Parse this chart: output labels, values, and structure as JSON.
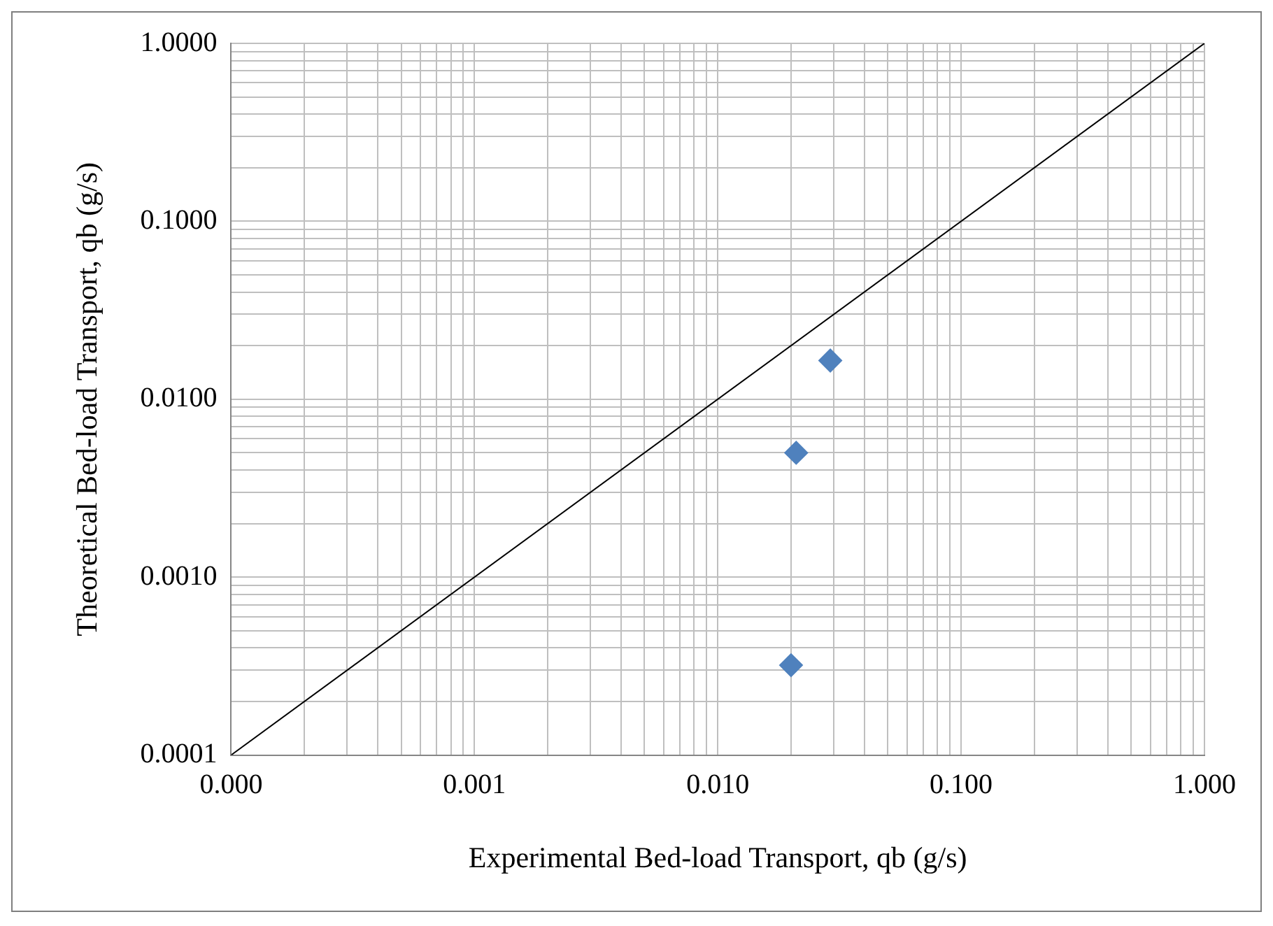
{
  "chart_data": {
    "type": "scatter",
    "xlabel": "Experimental Bed-load Transport, qb (g/s)",
    "ylabel": "Theoretical Bed-load Transport, qb (g/s)",
    "log": "xy",
    "grid": true,
    "legend": false,
    "marker": "diamond",
    "xlim": [
      0.0001,
      1
    ],
    "ylim": [
      0.0001,
      1
    ],
    "xticks": [
      {
        "value": 0.0001,
        "label": "0.000"
      },
      {
        "value": 0.0002,
        "label": null
      },
      {
        "value": 0.0003,
        "label": null
      },
      {
        "value": 0.0004,
        "label": null
      },
      {
        "value": 0.0005,
        "label": null
      },
      {
        "value": 0.0006,
        "label": null
      },
      {
        "value": 0.0007,
        "label": null
      },
      {
        "value": 0.0008,
        "label": null
      },
      {
        "value": 0.0009,
        "label": null
      },
      0.001,
      {
        "value": 0.002,
        "label": null
      },
      {
        "value": 0.003,
        "label": null
      },
      {
        "value": 0.004,
        "label": null
      },
      {
        "value": 0.005,
        "label": null
      },
      {
        "value": 0.006,
        "label": null
      },
      {
        "value": 0.007,
        "label": null
      },
      {
        "value": 0.008,
        "label": null
      },
      {
        "value": 0.009,
        "label": null
      },
      {
        "value": 0.01,
        "label": "0.010"
      },
      {
        "value": 0.02,
        "label": null
      },
      {
        "value": 0.03,
        "label": null
      },
      {
        "value": 0.04,
        "label": null
      },
      {
        "value": 0.05,
        "label": null
      },
      {
        "value": 0.06,
        "label": null
      },
      {
        "value": 0.07,
        "label": null
      },
      {
        "value": 0.08,
        "label": null
      },
      {
        "value": 0.09,
        "label": null
      },
      {
        "value": 0.1,
        "label": "0.100"
      },
      {
        "value": 0.2,
        "label": null
      },
      {
        "value": 0.3,
        "label": null
      },
      {
        "value": 0.4,
        "label": null
      },
      {
        "value": 0.5,
        "label": null
      },
      {
        "value": 0.6,
        "label": null
      },
      {
        "value": 0.7,
        "label": null
      },
      {
        "value": 0.8,
        "label": null
      },
      {
        "value": 0.9,
        "label": null
      },
      {
        "value": 1,
        "label": "1.000"
      }
    ],
    "yticks": [
      {
        "value": 0.0001,
        "label": "0.0001"
      },
      {
        "value": 0.0002,
        "label": null
      },
      {
        "value": 0.0003,
        "label": null
      },
      {
        "value": 0.0004,
        "label": null
      },
      {
        "value": 0.0005,
        "label": null
      },
      {
        "value": 0.0006,
        "label": null
      },
      {
        "value": 0.0007,
        "label": null
      },
      {
        "value": 0.0008,
        "label": null
      },
      {
        "value": 0.0009,
        "label": null
      },
      {
        "value": 0.001,
        "label": "0.0010"
      },
      {
        "value": 0.002,
        "label": null
      },
      {
        "value": 0.003,
        "label": null
      },
      {
        "value": 0.004,
        "label": null
      },
      {
        "value": 0.005,
        "label": null
      },
      {
        "value": 0.006,
        "label": null
      },
      {
        "value": 0.007,
        "label": null
      },
      {
        "value": 0.008,
        "label": null
      },
      {
        "value": 0.009,
        "label": null
      },
      {
        "value": 0.01,
        "label": "0.0100"
      },
      {
        "value": 0.02,
        "label": null
      },
      {
        "value": 0.03,
        "label": null
      },
      {
        "value": 0.04,
        "label": null
      },
      {
        "value": 0.05,
        "label": null
      },
      {
        "value": 0.06,
        "label": null
      },
      {
        "value": 0.07,
        "label": null
      },
      {
        "value": 0.08,
        "label": null
      },
      {
        "value": 0.09,
        "label": null
      },
      {
        "value": 0.1,
        "label": "0.1000"
      },
      {
        "value": 0.2,
        "label": null
      },
      {
        "value": 0.3,
        "label": null
      },
      {
        "value": 0.4,
        "label": null
      },
      {
        "value": 0.5,
        "label": null
      },
      {
        "value": 0.6,
        "label": null
      },
      {
        "value": 0.7,
        "label": null
      },
      {
        "value": 0.8,
        "label": null
      },
      {
        "value": 0.9,
        "label": null
      },
      {
        "value": 1,
        "label": "1.0000"
      }
    ],
    "series": [
      {
        "color": "#4f81bd",
        "x": [
          0.029,
          0.021,
          0.02
        ],
        "values": [
          0.0165,
          0.005,
          0.00032
        ]
      },
      {
        "type": "line",
        "color": "#000000",
        "marker": "none",
        "x": [
          0.0001,
          1
        ],
        "values": [
          0.0001,
          1
        ]
      }
    ]
  }
}
